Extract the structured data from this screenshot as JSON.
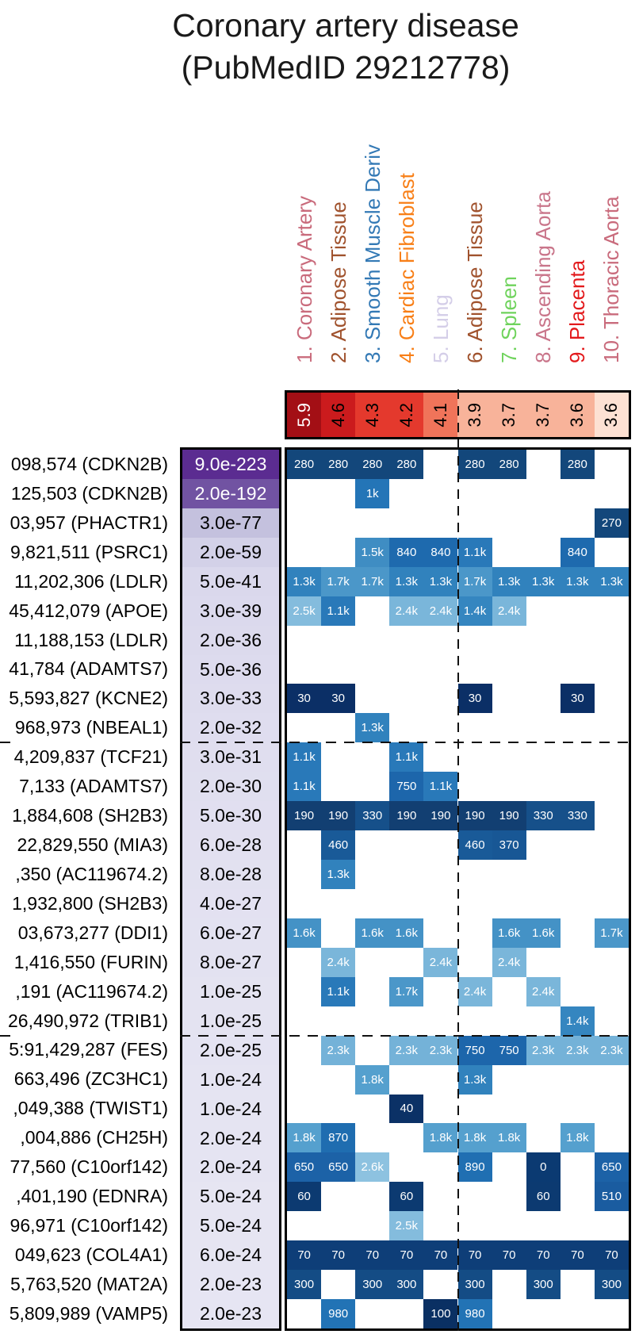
{
  "title": {
    "line1": "Coronary artery disease",
    "line2": "(PubMedID 29212778)"
  },
  "chart_data": {
    "type": "heatmap",
    "columns": [
      {
        "label": "1. Coronary Artery",
        "label_color": "#c96b7c",
        "score": "5.9",
        "score_bg": "#a30f15",
        "score_text": "#ffffff"
      },
      {
        "label": "2. Adipose Tissue",
        "label_color": "#a0522d",
        "score": "4.6",
        "score_bg": "#cb1b1d",
        "score_text": "#000000"
      },
      {
        "label": "3. Smooth Muscle Deriv",
        "label_color": "#3379b5",
        "score": "4.3",
        "score_bg": "#e4392d",
        "score_text": "#000000"
      },
      {
        "label": "4. Cardiac Fibroblast",
        "label_color": "#f87f17",
        "score": "4.2",
        "score_bg": "#e4392d",
        "score_text": "#000000"
      },
      {
        "label": "5. Lung",
        "label_color": "#d4cee8",
        "score": "4.1",
        "score_bg": "#f0745a",
        "score_text": "#000000"
      },
      {
        "label": "6. Adipose Tissue",
        "label_color": "#a0522d",
        "score": "3.9",
        "score_bg": "#f8b39a",
        "score_text": "#000000"
      },
      {
        "label": "7. Spleen",
        "label_color": "#6fd35c",
        "score": "3.7",
        "score_bg": "#f8b39a",
        "score_text": "#000000"
      },
      {
        "label": "8. Ascending Aorta",
        "label_color": "#c9758a",
        "score": "3.7",
        "score_bg": "#f8b39a",
        "score_text": "#000000"
      },
      {
        "label": "9. Placenta",
        "label_color": "#e31a1c",
        "score": "3.6",
        "score_bg": "#f8b39a",
        "score_text": "#000000"
      },
      {
        "label": "10. Thoracic Aorta",
        "label_color": "#c96b7c",
        "score": "3.6",
        "score_bg": "#fde1d3",
        "score_text": "#000000"
      }
    ],
    "value_colors": {
      "0": "#0b3a72",
      "30": "#0b2f66",
      "40": "#0b3166",
      "60": "#0c3a71",
      "70": "#0e3e78",
      "100": "#0a3063",
      "190": "#123f72",
      "270": "#13477b",
      "280": "#13477b",
      "300": "#144c85",
      "330": "#16508a",
      "370": "#185795",
      "460": "#195a98",
      "510": "#1a5ca0",
      "650": "#1c62a7",
      "750": "#1d66ab",
      "840": "#1e6aae",
      "870": "#1f6db0",
      "890": "#206fb2",
      "980": "#2273b5",
      "1k": "#2475b7",
      "1.1k": "#2979b9",
      "1.3k": "#3182bd",
      "1.4k": "#3586c0",
      "1.5k": "#3f8dc3",
      "1.6k": "#4492c6",
      "1.7k": "#4b97c9",
      "1.8k": "#55a0ce",
      "2.3k": "#74b2d8",
      "2.4k": "#7ab6da",
      "2.5k": "#84bcdd",
      "2.6k": "#8dc2e0"
    },
    "rows": [
      {
        "label": "098,574 (CDKN2B)",
        "pvalue": "9.0e-223",
        "pvalue_bg": "#5b2c91",
        "pvalue_text": "#ffffff",
        "cells": {
          "1": "280",
          "2": "280",
          "3": "280",
          "4": "280",
          "6": "280",
          "7": "280",
          "9": "280"
        }
      },
      {
        "label": "125,503 (CDKN2B)",
        "pvalue": "2.0e-192",
        "pvalue_bg": "#7153a2",
        "pvalue_text": "#ffffff",
        "cells": {
          "3": "1k"
        }
      },
      {
        "label": "03,957 (PHACTR1)",
        "pvalue": "3.0e-77",
        "pvalue_bg": "#c4c1de",
        "pvalue_text": "#000000",
        "cells": {
          "10": "270"
        }
      },
      {
        "label": "9,821,511 (PSRC1)",
        "pvalue": "2.0e-59",
        "pvalue_bg": "#d3d1e8",
        "pvalue_text": "#000000",
        "cells": {
          "3": "1.5k",
          "4": "840",
          "5": "840",
          "6": "1.1k",
          "9": "840"
        }
      },
      {
        "label": "11,202,306 (LDLR)",
        "pvalue": "5.0e-41",
        "pvalue_bg": "#dad8ec",
        "pvalue_text": "#000000",
        "cells": {
          "1": "1.3k",
          "2": "1.7k",
          "3": "1.7k",
          "4": "1.3k",
          "5": "1.3k",
          "6": "1.7k",
          "7": "1.3k",
          "8": "1.3k",
          "9": "1.3k",
          "10": "1.3k"
        }
      },
      {
        "label": "45,412,079 (APOE)",
        "pvalue": "3.0e-39",
        "pvalue_bg": "#dbd9ed",
        "pvalue_text": "#000000",
        "cells": {
          "1": "2.5k",
          "2": "1.1k",
          "4": "2.4k",
          "5": "2.4k",
          "6": "1.4k",
          "7": "2.4k"
        }
      },
      {
        "label": "11,188,153 (LDLR)",
        "pvalue": "2.0e-36",
        "pvalue_bg": "#dcdaed",
        "pvalue_text": "#000000",
        "cells": {}
      },
      {
        "label": "41,784 (ADAMTS7)",
        "pvalue": "5.0e-36",
        "pvalue_bg": "#dddbee",
        "pvalue_text": "#000000",
        "cells": {}
      },
      {
        "label": "5,593,827 (KCNE2)",
        "pvalue": "3.0e-33",
        "pvalue_bg": "#dedcee",
        "pvalue_text": "#000000",
        "cells": {
          "1": "30",
          "2": "30",
          "6": "30",
          "9": "30"
        }
      },
      {
        "label": "968,973 (NBEAL1)",
        "pvalue": "2.0e-32",
        "pvalue_bg": "#dfddef",
        "pvalue_text": "#000000",
        "cells": {
          "3": "1.3k"
        }
      },
      {
        "label": "4,209,837 (TCF21)",
        "pvalue": "3.0e-31",
        "pvalue_bg": "#e0deef",
        "pvalue_text": "#000000",
        "cells": {
          "1": "1.1k",
          "4": "1.1k"
        }
      },
      {
        "label": "7,133 (ADAMTS7)",
        "pvalue": "2.0e-30",
        "pvalue_bg": "#e0dfef",
        "pvalue_text": "#000000",
        "cells": {
          "1": "1.1k",
          "4": "750",
          "5": "1.1k"
        }
      },
      {
        "label": "1,884,608 (SH2B3)",
        "pvalue": "5.0e-30",
        "pvalue_bg": "#e1dff0",
        "pvalue_text": "#000000",
        "cells": {
          "1": "190",
          "2": "190",
          "3": "330",
          "4": "190",
          "5": "190",
          "6": "190",
          "7": "190",
          "8": "330",
          "9": "330"
        }
      },
      {
        "label": "22,829,550 (MIA3)",
        "pvalue": "6.0e-28",
        "pvalue_bg": "#e2e0f0",
        "pvalue_text": "#000000",
        "cells": {
          "2": "460",
          "6": "460",
          "7": "370"
        }
      },
      {
        "label": ",350 (AC119674.2)",
        "pvalue": "8.0e-28",
        "pvalue_bg": "#e2e1f0",
        "pvalue_text": "#000000",
        "cells": {
          "2": "1.3k"
        }
      },
      {
        "label": "1,932,800 (SH2B3)",
        "pvalue": "4.0e-27",
        "pvalue_bg": "#e3e1f1",
        "pvalue_text": "#000000",
        "cells": {}
      },
      {
        "label": "03,673,277 (DDI1)",
        "pvalue": "6.0e-27",
        "pvalue_bg": "#e3e2f1",
        "pvalue_text": "#000000",
        "cells": {
          "1": "1.6k",
          "3": "1.6k",
          "4": "1.6k",
          "7": "1.6k",
          "8": "1.6k",
          "10": "1.7k"
        }
      },
      {
        "label": "1,416,550 (FURIN)",
        "pvalue": "8.0e-27",
        "pvalue_bg": "#e3e2f1",
        "pvalue_text": "#000000",
        "cells": {
          "2": "2.4k",
          "5": "2.4k",
          "7": "2.4k"
        }
      },
      {
        "label": ",191 (AC119674.2)",
        "pvalue": "1.0e-25",
        "pvalue_bg": "#e4e3f1",
        "pvalue_text": "#000000",
        "cells": {
          "2": "1.1k",
          "4": "1.7k",
          "6": "2.4k",
          "8": "2.4k"
        }
      },
      {
        "label": "26,490,972 (TRIB1)",
        "pvalue": "1.0e-25",
        "pvalue_bg": "#e4e3f1",
        "pvalue_text": "#000000",
        "cells": {
          "9": "1.4k"
        }
      },
      {
        "label": "5:91,429,287 (FES)",
        "pvalue": "2.0e-25",
        "pvalue_bg": "#e4e3f2",
        "pvalue_text": "#000000",
        "cells": {
          "2": "2.3k",
          "4": "2.3k",
          "5": "2.3k",
          "6": "750",
          "7": "750",
          "8": "2.3k",
          "9": "2.3k",
          "10": "2.3k"
        }
      },
      {
        "label": "663,496 (ZC3HC1)",
        "pvalue": "1.0e-24",
        "pvalue_bg": "#e5e4f2",
        "pvalue_text": "#000000",
        "cells": {
          "3": "1.8k",
          "6": "1.3k"
        }
      },
      {
        "label": ",049,388 (TWIST1)",
        "pvalue": "1.0e-24",
        "pvalue_bg": "#e5e4f2",
        "pvalue_text": "#000000",
        "cells": {
          "4": "40"
        }
      },
      {
        "label": ",004,886 (CH25H)",
        "pvalue": "2.0e-24",
        "pvalue_bg": "#e5e4f2",
        "pvalue_text": "#000000",
        "cells": {
          "1": "1.8k",
          "2": "870",
          "5": "1.8k",
          "6": "1.8k",
          "7": "1.8k",
          "9": "1.8k"
        }
      },
      {
        "label": "77,560 (C10orf142)",
        "pvalue": "2.0e-24",
        "pvalue_bg": "#e5e4f2",
        "pvalue_text": "#000000",
        "cells": {
          "1": "650",
          "2": "650",
          "3": "2.6k",
          "6": "890",
          "8": "0",
          "10": "650"
        }
      },
      {
        "label": ",401,190 (EDNRA)",
        "pvalue": "5.0e-24",
        "pvalue_bg": "#e6e5f2",
        "pvalue_text": "#000000",
        "cells": {
          "1": "60",
          "4": "60",
          "8": "60",
          "10": "510"
        }
      },
      {
        "label": "96,971 (C10orf142)",
        "pvalue": "5.0e-24",
        "pvalue_bg": "#e6e5f2",
        "pvalue_text": "#000000",
        "cells": {
          "4": "2.5k"
        }
      },
      {
        "label": "049,623 (COL4A1)",
        "pvalue": "6.0e-24",
        "pvalue_bg": "#e6e5f2",
        "pvalue_text": "#000000",
        "cells": {
          "1": "70",
          "2": "70",
          "3": "70",
          "4": "70",
          "5": "70",
          "6": "70",
          "7": "70",
          "8": "70",
          "9": "70",
          "10": "70"
        }
      },
      {
        "label": "5,763,520 (MAT2A)",
        "pvalue": "2.0e-23",
        "pvalue_bg": "#e6e5f3",
        "pvalue_text": "#000000",
        "cells": {
          "1": "300",
          "3": "300",
          "4": "300",
          "6": "300",
          "8": "300",
          "10": "300"
        }
      },
      {
        "label": "5,809,989 (VAMP5)",
        "pvalue": "2.0e-23",
        "pvalue_bg": "#e6e5f3",
        "pvalue_text": "#000000",
        "cells": {
          "2": "980",
          "5": "100",
          "6": "980"
        }
      }
    ],
    "separators": {
      "vertical_after_column": 5,
      "horizontal_after_rows": [
        10,
        20
      ]
    }
  }
}
